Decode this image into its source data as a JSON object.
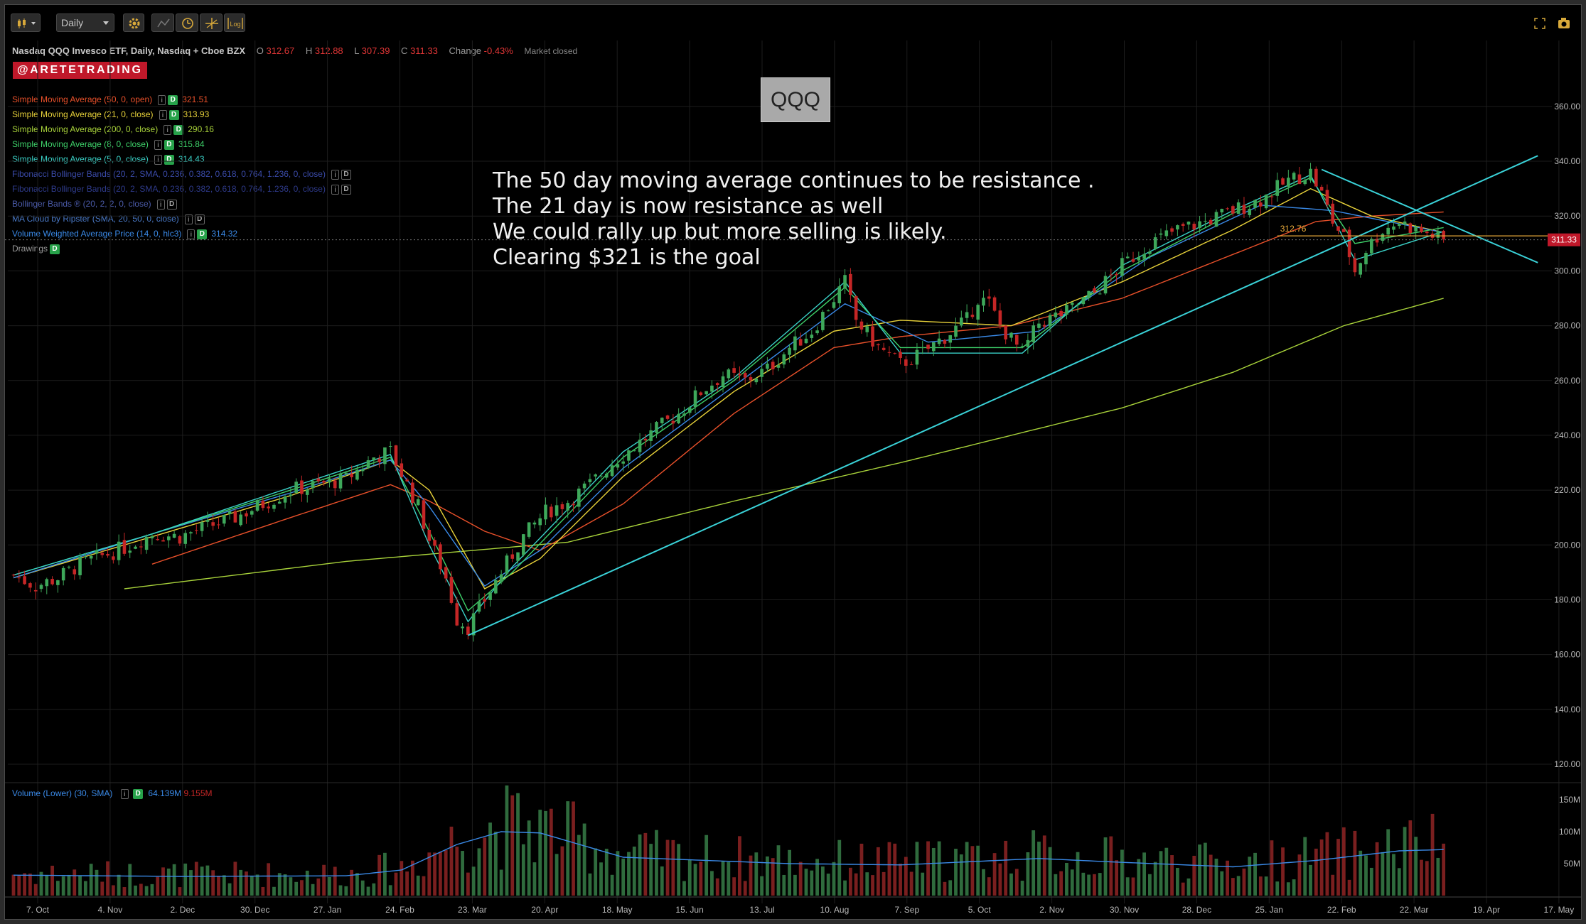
{
  "toolbar": {
    "period_value": "Daily",
    "icons": [
      "candlestick-style-icon",
      "settings-gear-icon",
      "drawing-tools-icon",
      "clock-icon",
      "crosshair-icon",
      "log-scale-icon",
      "fullscreen-icon",
      "camera-icon"
    ],
    "log_label": "Log"
  },
  "symbol": {
    "description": "Nasdaq QQQ Invesco ETF, Daily, Nasdaq + Cboe BZX",
    "open_label": "O",
    "open": "312.67",
    "high_label": "H",
    "high": "312.88",
    "low_label": "L",
    "low": "307.39",
    "close_label": "C",
    "close": "311.33",
    "change_label": "Change",
    "change": "-0.43%",
    "status": "Market closed"
  },
  "brand": "@ARETETRADING",
  "studies": [
    {
      "name": "Simple Moving Average (50, 0, open)",
      "value": "321.51",
      "color": "#e8502a"
    },
    {
      "name": "Simple Moving Average (21, 0, close)",
      "value": "313.93",
      "color": "#e8d23a"
    },
    {
      "name": "Simple Moving Average (200, 0, close)",
      "value": "290.16",
      "color": "#a8d23a"
    },
    {
      "name": "Simple Moving Average (8, 0, close)",
      "value": "315.84",
      "color": "#3ed26a"
    },
    {
      "name": "Simple Moving Average (5, 0, close)",
      "value": "314.43",
      "color": "#3ad2c8"
    },
    {
      "name": "Fibonacci Bollinger Bands (20, 2, SMA, 0.236, 0.382, 0.618, 0.764, 1.236, 0, close)",
      "value": "",
      "color": "#3a4aa8"
    },
    {
      "name": "Fibonacci Bollinger Bands (20, 2, SMA, 0.236, 0.382, 0.618, 0.764, 1.236, 0, close)",
      "value": "",
      "color": "#2e3a8a"
    },
    {
      "name": "Bollinger Bands ® (20, 2, 2, 0, close)",
      "value": "",
      "color": "#4a5aa8"
    },
    {
      "name": "MA Cloud by Ripster (SMA, 20, 50, 0, close)",
      "value": "",
      "color": "#4a7ac8"
    },
    {
      "name": "Volume Weighted Average Price (14, 0, hlc3)",
      "value": "314.32",
      "color": "#3a8ae8"
    },
    {
      "name": "Drawings",
      "value": "",
      "color": "#9a9a9a"
    }
  ],
  "study_badge": "D",
  "study_info": "i",
  "ticker_box": "QQQ",
  "annotation": [
    "The 50 day moving average continues to be resistance .",
    "The 21 day is now resistance as well",
    "We could rally up but more selling is likely.",
    "Clearing $321 is the goal"
  ],
  "volume_legend": {
    "name": "Volume (Lower) (30, SMA)",
    "value1": "64.139M",
    "value2": "9.155M"
  },
  "current_price_tag": "311.33",
  "level_label": "312.76",
  "colors": {
    "up": "#3ea85a",
    "down": "#c52626",
    "trendline": "#3ad2d8",
    "price_tag": "#c0182a",
    "level": "#e8a93a"
  },
  "chart_data": {
    "type": "candlestick",
    "x_tick_labels": [
      "7. Oct",
      "4. Nov",
      "2. Dec",
      "30. Dec",
      "27. Jan",
      "24. Feb",
      "23. Mar",
      "20. Apr",
      "18. May",
      "15. Jun",
      "13. Jul",
      "10. Aug",
      "7. Sep",
      "5. Oct",
      "2. Nov",
      "30. Nov",
      "28. Dec",
      "25. Jan",
      "22. Feb",
      "22. Mar",
      "19. Apr",
      "17. May"
    ],
    "y_ticks": [
      120,
      140,
      160,
      180,
      200,
      220,
      240,
      260,
      280,
      300,
      320,
      340,
      360
    ],
    "ylim": [
      113,
      368
    ],
    "volume_ticks": [
      "50M",
      "100M",
      "150M"
    ],
    "volume_ylim": [
      0,
      160
    ],
    "price_path": [
      [
        0,
        189
      ],
      [
        4,
        185
      ],
      [
        8,
        188
      ],
      [
        12,
        193
      ],
      [
        16,
        196
      ],
      [
        20,
        199
      ],
      [
        25,
        204
      ],
      [
        30,
        203
      ],
      [
        34,
        206
      ],
      [
        40,
        210
      ],
      [
        45,
        215
      ],
      [
        50,
        220
      ],
      [
        55,
        222
      ],
      [
        60,
        224
      ],
      [
        65,
        232
      ],
      [
        68,
        234
      ],
      [
        70,
        226
      ],
      [
        73,
        214
      ],
      [
        75,
        202
      ],
      [
        78,
        188
      ],
      [
        80,
        173
      ],
      [
        82,
        170
      ],
      [
        85,
        180
      ],
      [
        88,
        190
      ],
      [
        92,
        203
      ],
      [
        96,
        212
      ],
      [
        100,
        216
      ],
      [
        104,
        222
      ],
      [
        108,
        230
      ],
      [
        112,
        236
      ],
      [
        116,
        242
      ],
      [
        120,
        248
      ],
      [
        124,
        256
      ],
      [
        128,
        262
      ],
      [
        132,
        260
      ],
      [
        136,
        264
      ],
      [
        140,
        272
      ],
      [
        144,
        278
      ],
      [
        148,
        290
      ],
      [
        150,
        296
      ],
      [
        152,
        282
      ],
      [
        156,
        272
      ],
      [
        160,
        266
      ],
      [
        164,
        270
      ],
      [
        168,
        276
      ],
      [
        172,
        282
      ],
      [
        174,
        290
      ],
      [
        176,
        288
      ],
      [
        178,
        280
      ],
      [
        182,
        270
      ],
      [
        185,
        281
      ],
      [
        190,
        285
      ],
      [
        195,
        292
      ],
      [
        200,
        302
      ],
      [
        205,
        310
      ],
      [
        210,
        315
      ],
      [
        215,
        318
      ],
      [
        220,
        322
      ],
      [
        225,
        326
      ],
      [
        230,
        333
      ],
      [
        234,
        336
      ],
      [
        236,
        328
      ],
      [
        238,
        318
      ],
      [
        240,
        312
      ],
      [
        242,
        300
      ],
      [
        244,
        308
      ],
      [
        247,
        315
      ],
      [
        250,
        318
      ],
      [
        253,
        315
      ],
      [
        256,
        313
      ],
      [
        258,
        311
      ]
    ],
    "sma50": [
      [
        25,
        193
      ],
      [
        50,
        210
      ],
      [
        68,
        222
      ],
      [
        75,
        216
      ],
      [
        85,
        205
      ],
      [
        95,
        198
      ],
      [
        110,
        215
      ],
      [
        130,
        248
      ],
      [
        148,
        272
      ],
      [
        160,
        276
      ],
      [
        180,
        280
      ],
      [
        200,
        290
      ],
      [
        220,
        306
      ],
      [
        235,
        318
      ],
      [
        245,
        320
      ],
      [
        258,
        321.5
      ]
    ],
    "sma21": [
      [
        0,
        188
      ],
      [
        25,
        203
      ],
      [
        50,
        218
      ],
      [
        68,
        231
      ],
      [
        75,
        220
      ],
      [
        85,
        184
      ],
      [
        95,
        195
      ],
      [
        110,
        225
      ],
      [
        130,
        256
      ],
      [
        148,
        278
      ],
      [
        160,
        282
      ],
      [
        180,
        280
      ],
      [
        200,
        296
      ],
      [
        220,
        315
      ],
      [
        234,
        330
      ],
      [
        245,
        320
      ],
      [
        258,
        314
      ]
    ],
    "sma200": [
      [
        20,
        184
      ],
      [
        60,
        194
      ],
      [
        100,
        201
      ],
      [
        130,
        216
      ],
      [
        160,
        230
      ],
      [
        180,
        240
      ],
      [
        200,
        250
      ],
      [
        220,
        263
      ],
      [
        240,
        280
      ],
      [
        258,
        290
      ]
    ],
    "sma8": [
      [
        0,
        189
      ],
      [
        25,
        204
      ],
      [
        50,
        220
      ],
      [
        68,
        232
      ],
      [
        75,
        205
      ],
      [
        82,
        176
      ],
      [
        90,
        190
      ],
      [
        110,
        232
      ],
      [
        130,
        260
      ],
      [
        150,
        294
      ],
      [
        160,
        272
      ],
      [
        182,
        272
      ],
      [
        200,
        300
      ],
      [
        220,
        321
      ],
      [
        234,
        334
      ],
      [
        242,
        310
      ],
      [
        258,
        315.8
      ]
    ],
    "sma5": [
      [
        0,
        189
      ],
      [
        25,
        204
      ],
      [
        50,
        221
      ],
      [
        68,
        233
      ],
      [
        75,
        200
      ],
      [
        82,
        172
      ],
      [
        90,
        192
      ],
      [
        110,
        234
      ],
      [
        130,
        261
      ],
      [
        150,
        296
      ],
      [
        160,
        270
      ],
      [
        182,
        270
      ],
      [
        200,
        302
      ],
      [
        220,
        322
      ],
      [
        234,
        335
      ],
      [
        242,
        304
      ],
      [
        258,
        314.4
      ]
    ],
    "vwap": [
      [
        0,
        188
      ],
      [
        25,
        204
      ],
      [
        50,
        219
      ],
      [
        68,
        231
      ],
      [
        75,
        214
      ],
      [
        85,
        185
      ],
      [
        95,
        198
      ],
      [
        110,
        228
      ],
      [
        130,
        258
      ],
      [
        150,
        288
      ],
      [
        165,
        274
      ],
      [
        185,
        278
      ],
      [
        205,
        305
      ],
      [
        225,
        324
      ],
      [
        238,
        322
      ],
      [
        258,
        314
      ]
    ],
    "trendlines": [
      {
        "from": [
          82,
          167
        ],
        "to": [
          275,
          342
        ]
      },
      {
        "from": [
          236,
          337
        ],
        "to": [
          275,
          303
        ]
      }
    ],
    "level_line": {
      "from_bar": 228,
      "to_bar": 268,
      "value": 312.76
    },
    "volume_sma": [
      [
        0,
        32
      ],
      [
        30,
        30
      ],
      [
        60,
        31
      ],
      [
        70,
        40
      ],
      [
        80,
        80
      ],
      [
        88,
        100
      ],
      [
        95,
        98
      ],
      [
        110,
        60
      ],
      [
        140,
        50
      ],
      [
        160,
        48
      ],
      [
        185,
        58
      ],
      [
        200,
        52
      ],
      [
        220,
        45
      ],
      [
        235,
        55
      ],
      [
        250,
        70
      ],
      [
        258,
        72
      ]
    ]
  }
}
